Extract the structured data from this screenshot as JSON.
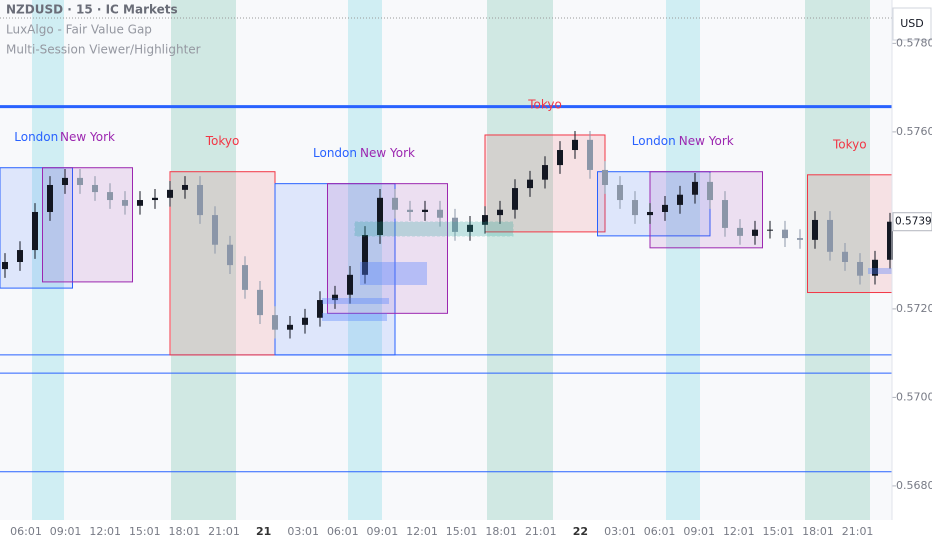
{
  "chart_data": {
    "type": "candlestick",
    "title": "NZDUSD · 15 · IC Markets",
    "indicators": [
      "LuxAlgo - Fair Value Gap",
      "Multi-Session Viewer/Highlighter"
    ],
    "currency": "USD",
    "last_price": 0.57397,
    "up_color": "#131722",
    "down_color": "#8b96a8",
    "ylim": [
      0.56723,
      0.57898
    ],
    "yticks": [
      {
        "value": 0.578,
        "label": "0.57800"
      },
      {
        "value": 0.576,
        "label": "0.57600"
      },
      {
        "value": 0.572,
        "label": "0.57200"
      },
      {
        "value": 0.57,
        "label": "0.57000"
      },
      {
        "value": 0.568,
        "label": "0.56800"
      }
    ],
    "xlabels": [
      "06:01",
      "09:01",
      "12:01",
      "15:01",
      "18:01",
      "21:01",
      "21",
      "03:01",
      "06:01",
      "09:01",
      "12:01",
      "15:01",
      "18:01",
      "21:01",
      "22",
      "03:01",
      "06:01",
      "09:01",
      "12:01",
      "15:01",
      "18:01",
      "21:01"
    ],
    "open": [
      0.5729,
      0.57306,
      0.57333,
      0.57419,
      0.5748,
      0.57496,
      0.5748,
      0.57464,
      0.57446,
      0.57433,
      0.57446,
      0.57451,
      0.57469,
      0.5748,
      0.57412,
      0.57345,
      0.57299,
      0.57243,
      0.57186,
      0.57153,
      0.57164,
      0.5718,
      0.5722,
      0.57232,
      0.57277,
      0.57367,
      0.57451,
      0.57424,
      0.57419,
      0.57424,
      0.57406,
      0.57374,
      0.5739,
      0.57412,
      0.57424,
      0.57473,
      0.57492,
      0.57525,
      0.57559,
      0.57582,
      0.57514,
      0.5748,
      0.57446,
      0.57412,
      0.57419,
      0.57435,
      0.57458,
      0.57487,
      0.57446,
      0.57383,
      0.57365,
      0.57379,
      0.57379,
      0.5736,
      0.57356,
      0.57401,
      0.57329,
      0.57306,
      0.57275,
      0.57311
    ],
    "high": [
      0.57326,
      0.57353,
      0.57439,
      0.575,
      0.57516,
      0.57516,
      0.575,
      0.57484,
      0.57466,
      0.57466,
      0.57471,
      0.57489,
      0.575,
      0.575,
      0.57432,
      0.57365,
      0.57319,
      0.57263,
      0.57206,
      0.57184,
      0.572,
      0.5724,
      0.57252,
      0.57297,
      0.57387,
      0.57471,
      0.57471,
      0.57444,
      0.57444,
      0.57444,
      0.57426,
      0.5741,
      0.57432,
      0.57444,
      0.57493,
      0.57512,
      0.57545,
      0.57579,
      0.57602,
      0.57602,
      0.57534,
      0.575,
      0.57466,
      0.57439,
      0.57455,
      0.57478,
      0.57507,
      0.57507,
      0.57466,
      0.57403,
      0.57399,
      0.57399,
      0.57399,
      0.5738,
      0.57421,
      0.57421,
      0.57349,
      0.57326,
      0.57331,
      0.57417
    ],
    "low": [
      0.5727,
      0.57286,
      0.57313,
      0.57399,
      0.5746,
      0.5746,
      0.57444,
      0.57426,
      0.57413,
      0.57413,
      0.57426,
      0.57431,
      0.57449,
      0.57392,
      0.57325,
      0.57279,
      0.57223,
      0.57166,
      0.57133,
      0.57133,
      0.57144,
      0.5716,
      0.572,
      0.57212,
      0.57257,
      0.57347,
      0.57404,
      0.57399,
      0.57399,
      0.57386,
      0.57354,
      0.57354,
      0.5737,
      0.57392,
      0.57404,
      0.57453,
      0.57472,
      0.57505,
      0.57539,
      0.57494,
      0.5746,
      0.57426,
      0.57392,
      0.57392,
      0.57399,
      0.57415,
      0.57438,
      0.57426,
      0.57363,
      0.57345,
      0.57345,
      0.57359,
      0.5734,
      0.57336,
      0.57336,
      0.57309,
      0.57286,
      0.57255,
      0.57255,
      0.57291
    ],
    "close": [
      0.57306,
      0.57333,
      0.57419,
      0.5748,
      0.57496,
      0.5748,
      0.57464,
      0.57446,
      0.57433,
      0.57446,
      0.57451,
      0.57469,
      0.5748,
      0.57412,
      0.57345,
      0.57299,
      0.57243,
      0.57186,
      0.57153,
      0.57164,
      0.5718,
      0.5722,
      0.57232,
      0.57277,
      0.57367,
      0.57451,
      0.57424,
      0.57419,
      0.57424,
      0.57406,
      0.57374,
      0.5739,
      0.57412,
      0.57424,
      0.57473,
      0.57492,
      0.57525,
      0.57559,
      0.57582,
      0.57514,
      0.5748,
      0.57446,
      0.57412,
      0.57419,
      0.57435,
      0.57458,
      0.57487,
      0.57446,
      0.57383,
      0.57365,
      0.57379,
      0.57379,
      0.5736,
      0.57356,
      0.57401,
      0.57329,
      0.57306,
      0.57275,
      0.57311,
      0.57397
    ],
    "sessions": [
      {
        "name": "London",
        "color": "#2962ff",
        "start": -0.5,
        "end": 4.5,
        "top": 0.57519,
        "bottom": 0.57247
      },
      {
        "name": "New York",
        "color": "#9c27b0",
        "start": 2.5,
        "end": 8.5,
        "top": 0.57519,
        "bottom": 0.57261
      },
      {
        "name": "Tokyo",
        "color": "#f23645",
        "start": 11,
        "end": 18,
        "top": 0.5751,
        "bottom": 0.57096
      },
      {
        "name": "London",
        "color": "#2962ff",
        "start": 18,
        "end": 26,
        "top": 0.57483,
        "bottom": 0.57096
      },
      {
        "name": "New York",
        "color": "#9c27b0",
        "start": 21.5,
        "end": 29.5,
        "top": 0.57483,
        "bottom": 0.5719
      },
      {
        "name": "Tokyo",
        "color": "#f23645",
        "start": 32,
        "end": 40,
        "top": 0.57593,
        "bottom": 0.57374
      },
      {
        "name": "London",
        "color": "#2962ff",
        "start": 39.5,
        "end": 47,
        "top": 0.5751,
        "bottom": 0.57365
      },
      {
        "name": "New York",
        "color": "#9c27b0",
        "start": 43,
        "end": 50.5,
        "top": 0.5751,
        "bottom": 0.57338
      },
      {
        "name": "Tokyo",
        "color": "#f23645",
        "start": 53.5,
        "end": 59.5,
        "top": 0.57503,
        "bottom": 0.57237
      }
    ],
    "levels": [
      0.57657,
      0.57096,
      0.57055,
      0.56832
    ]
  }
}
